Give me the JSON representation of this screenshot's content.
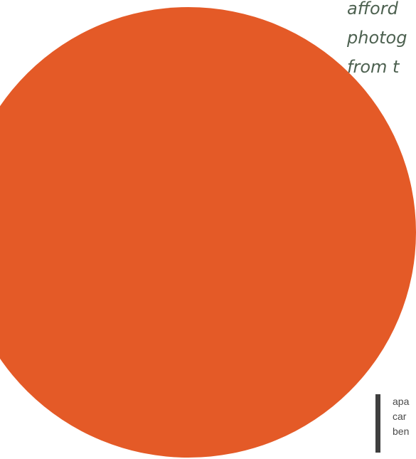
{
  "quote": {
    "lines": [
      "afford",
      "photog",
      "from t"
    ]
  },
  "decoration": {
    "circle_color": "#e45a27"
  },
  "caption": {
    "lines": [
      "apa",
      "car",
      "ben"
    ]
  }
}
